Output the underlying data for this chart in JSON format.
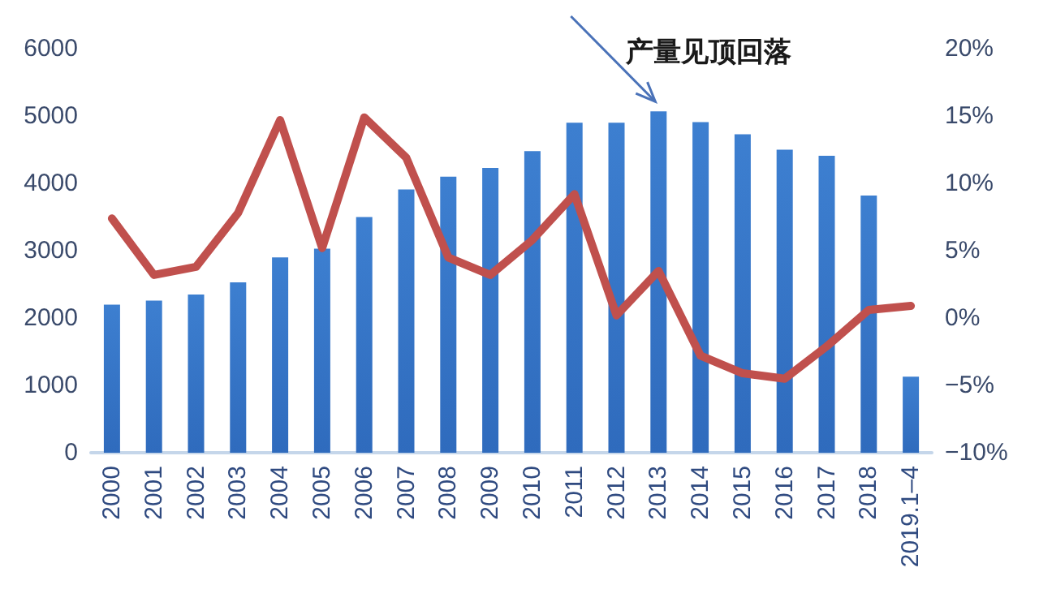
{
  "chart_data": {
    "type": "bar",
    "categories": [
      "2000",
      "2001",
      "2002",
      "2003",
      "2004",
      "2005",
      "2006",
      "2007",
      "2008",
      "2009",
      "2010",
      "2011",
      "2012",
      "2013",
      "2014",
      "2015",
      "2016",
      "2017",
      "2018",
      "2019.1–4"
    ],
    "series": [
      {
        "color": "#2f6bbd",
        "values": [
          2200,
          2260,
          2350,
          2530,
          2900,
          3030,
          3500,
          3910,
          4100,
          4230,
          4480,
          4900,
          4900,
          5070,
          4910,
          4730,
          4500,
          4410,
          3820,
          1130
        ]
      },
      {
        "type": "line",
        "axis": "y2",
        "color": "#c0504d",
        "values": [
          7.4,
          3.2,
          3.8,
          7.8,
          14.7,
          5.2,
          14.9,
          11.9,
          4.5,
          3.2,
          5.8,
          9.2,
          0.2,
          3.5,
          -2.8,
          -4.1,
          -4.5,
          -2.1,
          0.6,
          0.9
        ]
      }
    ],
    "ylim": [
      0,
      6000
    ],
    "yticks": [
      0,
      1000,
      2000,
      3000,
      4000,
      5000,
      6000
    ],
    "y2lim": [
      -10,
      20
    ],
    "y2ticks": [
      {
        "value": -10,
        "label": "−10%"
      },
      {
        "value": -5,
        "label": "−5%"
      },
      {
        "value": 0,
        "label": "0%"
      },
      {
        "value": 5,
        "label": "5%"
      },
      {
        "value": 10,
        "label": "10%"
      },
      {
        "value": 15,
        "label": "15%"
      },
      {
        "value": 20,
        "label": "20%"
      }
    ],
    "annotations": [
      {
        "text": "产量见顶回落",
        "x": "2013",
        "y": 5070
      }
    ],
    "grid": false,
    "marker": "none",
    "line_style": "solid"
  }
}
